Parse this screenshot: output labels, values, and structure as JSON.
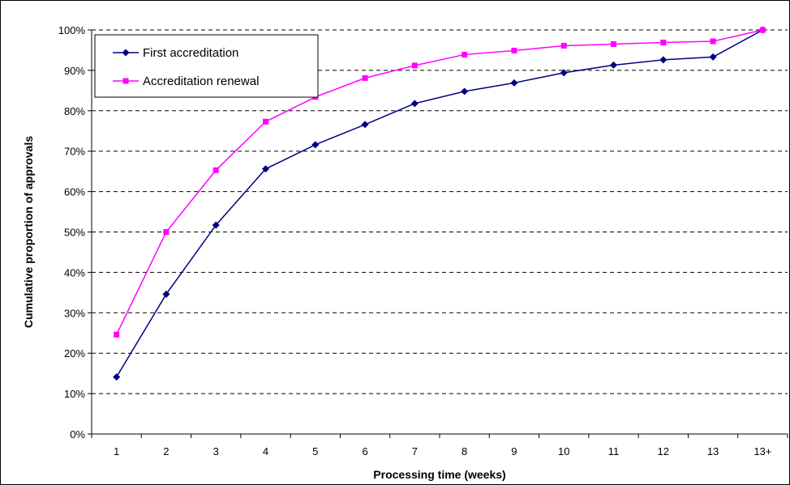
{
  "chart_data": {
    "type": "line",
    "xlabel": "Processing time (weeks)",
    "ylabel": "Cumulative proportion of approvals",
    "categories": [
      "1",
      "2",
      "3",
      "4",
      "5",
      "6",
      "7",
      "8",
      "9",
      "10",
      "11",
      "12",
      "13",
      "13+"
    ],
    "ylim": [
      0,
      100
    ],
    "ytick_labels": [
      "0%",
      "10%",
      "20%",
      "30%",
      "40%",
      "50%",
      "60%",
      "70%",
      "80%",
      "90%",
      "100%"
    ],
    "grid": "horizontal-dashed",
    "legend_placement": "top-left",
    "series": [
      {
        "name": "First accreditation",
        "color": "#000080",
        "marker": "diamond",
        "values": [
          14.1,
          34.6,
          51.7,
          65.6,
          71.6,
          76.6,
          81.8,
          84.8,
          86.9,
          89.4,
          91.3,
          92.6,
          93.3,
          100
        ]
      },
      {
        "name": "Accreditation renewal",
        "color": "#FF00FF",
        "marker": "square",
        "values": [
          24.6,
          50.0,
          65.3,
          77.3,
          83.4,
          88.1,
          91.2,
          93.9,
          94.9,
          96.1,
          96.5,
          96.9,
          97.2,
          100
        ]
      }
    ]
  }
}
